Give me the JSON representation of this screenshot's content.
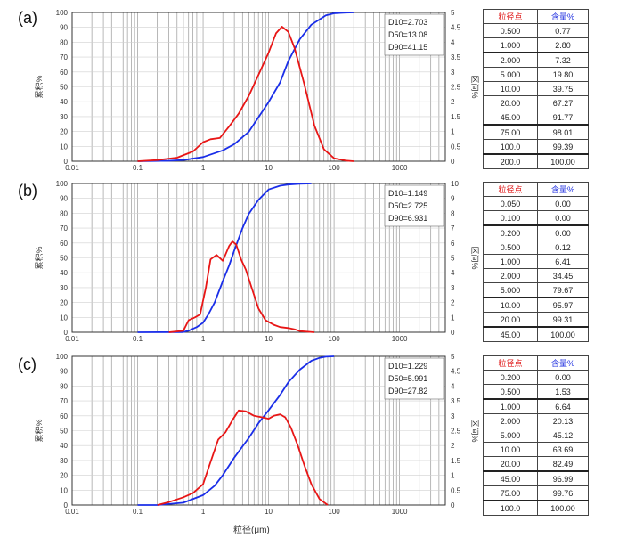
{
  "x_axis_label": "粒径(μm)",
  "chart_data": [
    {
      "type": "line",
      "label": "(a)",
      "ylabel_left": "累积%",
      "ylabel_right": "区间%",
      "ylim_left": [
        0,
        100
      ],
      "ylim_right": [
        0,
        5
      ],
      "y_ticks_left": [
        "0",
        "10",
        "20",
        "30",
        "40",
        "50",
        "60",
        "70",
        "80",
        "90",
        "100"
      ],
      "y_ticks_right": [
        "0",
        "0.5",
        "1",
        "1.5",
        "2",
        "2.5",
        "3",
        "3.5",
        "4",
        "4.5",
        "5"
      ],
      "x_scale": "log",
      "xlim": [
        0.01,
        5000
      ],
      "x_ticks": [
        "0.01",
        "0.1",
        "1",
        "10",
        "100",
        "1000"
      ],
      "d_values": [
        "D10=2.703",
        "D50=13.08",
        "D90=41.15"
      ],
      "colors": {
        "cumulative": "#1a2ee8",
        "interval": "#e81616"
      },
      "cumulative": {
        "x": [
          0.1,
          0.3,
          0.5,
          1,
          2,
          3,
          5,
          10,
          15,
          20,
          30,
          45,
          75,
          100,
          150,
          200
        ],
        "y": [
          0,
          0.3,
          0.77,
          2.8,
          7.3,
          11.5,
          19.8,
          39.75,
          53,
          67.27,
          82,
          91.77,
          98.01,
          99.39,
          99.9,
          100
        ]
      },
      "interval": {
        "x": [
          0.1,
          0.2,
          0.4,
          0.7,
          1,
          1.3,
          1.8,
          2.5,
          3.5,
          5,
          7,
          10,
          13,
          16,
          20,
          25,
          35,
          50,
          70,
          100,
          150,
          200
        ],
        "y": [
          0,
          0.04,
          0.12,
          0.33,
          0.64,
          0.74,
          0.78,
          1.17,
          1.6,
          2.2,
          2.9,
          3.65,
          4.3,
          4.52,
          4.35,
          3.8,
          2.6,
          1.2,
          0.4,
          0.1,
          0.02,
          0
        ]
      },
      "table": {
        "headers": [
          "粒径点",
          "含量%"
        ],
        "rows": [
          [
            "0.500",
            "0.77"
          ],
          [
            "1.000",
            "2.80"
          ],
          [
            "2.000",
            "7.32"
          ],
          [
            "5.000",
            "19.80"
          ],
          [
            "10.00",
            "39.75"
          ],
          [
            "20.00",
            "67.27"
          ],
          [
            "45.00",
            "91.77"
          ],
          [
            "75.00",
            "98.01"
          ],
          [
            "100.0",
            "99.39"
          ],
          [
            "200.0",
            "100.00"
          ]
        ]
      }
    },
    {
      "type": "line",
      "label": "(b)",
      "ylabel_left": "累积%",
      "ylabel_right": "区间%",
      "ylim_left": [
        0,
        100
      ],
      "ylim_right": [
        0,
        10
      ],
      "y_ticks_left": [
        "0",
        "10",
        "20",
        "30",
        "40",
        "50",
        "60",
        "70",
        "80",
        "90",
        "100"
      ],
      "y_ticks_right": [
        "0",
        "1",
        "2",
        "3",
        "4",
        "5",
        "6",
        "7",
        "8",
        "9",
        "10"
      ],
      "x_scale": "log",
      "xlim": [
        0.01,
        5000
      ],
      "x_ticks": [
        "0.01",
        "0.1",
        "1",
        "10",
        "100",
        "1000"
      ],
      "d_values": [
        "D10=1.149",
        "D50=2.725",
        "D90=6.931"
      ],
      "colors": {
        "cumulative": "#1a2ee8",
        "interval": "#e81616"
      },
      "cumulative": {
        "x": [
          0.1,
          0.5,
          0.6,
          0.8,
          1,
          1.2,
          1.5,
          2,
          2.5,
          3,
          4,
          5,
          7,
          10,
          15,
          20,
          30,
          45
        ],
        "y": [
          0,
          0.12,
          1,
          3.5,
          6.41,
          12,
          20,
          34.45,
          45,
          55,
          70,
          79.67,
          89,
          95.97,
          98.5,
          99.31,
          99.8,
          100
        ]
      },
      "interval": {
        "x": [
          0.3,
          0.5,
          0.6,
          0.75,
          0.9,
          1.1,
          1.3,
          1.6,
          2,
          2.5,
          2.8,
          3.2,
          3.8,
          4.5,
          5.5,
          7,
          9,
          12,
          15,
          20,
          25,
          30,
          50
        ],
        "y": [
          0,
          0.1,
          0.8,
          1.0,
          1.2,
          3.0,
          4.9,
          5.2,
          4.8,
          5.8,
          6.1,
          5.9,
          4.9,
          4.2,
          3.0,
          1.6,
          0.8,
          0.5,
          0.35,
          0.28,
          0.2,
          0.08,
          0
        ]
      },
      "table": {
        "headers": [
          "粒径点",
          "含量%"
        ],
        "rows": [
          [
            "0.050",
            "0.00"
          ],
          [
            "0.100",
            "0.00"
          ],
          [
            "0.200",
            "0.00"
          ],
          [
            "0.500",
            "0.12"
          ],
          [
            "1.000",
            "6.41"
          ],
          [
            "2.000",
            "34.45"
          ],
          [
            "5.000",
            "79.67"
          ],
          [
            "10.00",
            "95.97"
          ],
          [
            "20.00",
            "99.31"
          ],
          [
            "45.00",
            "100.00"
          ]
        ]
      }
    },
    {
      "type": "line",
      "label": "(c)",
      "ylabel_left": "累积%",
      "ylabel_right": "区间%",
      "ylim_left": [
        0,
        100
      ],
      "ylim_right": [
        0,
        5
      ],
      "y_ticks_left": [
        "0",
        "10",
        "20",
        "30",
        "40",
        "50",
        "60",
        "70",
        "80",
        "90",
        "100"
      ],
      "y_ticks_right": [
        "0",
        "0.5",
        "1",
        "1.5",
        "2",
        "2.5",
        "3",
        "3.5",
        "4",
        "4.5",
        "5"
      ],
      "x_scale": "log",
      "xlim": [
        0.01,
        5000
      ],
      "x_ticks": [
        "0.01",
        "0.1",
        "1",
        "10",
        "100",
        "1000"
      ],
      "d_values": [
        "D10=1.229",
        "D50=5.991",
        "D90=27.82"
      ],
      "colors": {
        "cumulative": "#1a2ee8",
        "interval": "#e81616"
      },
      "cumulative": {
        "x": [
          0.1,
          0.2,
          0.5,
          1,
          1.5,
          2,
          3,
          5,
          7,
          10,
          15,
          20,
          30,
          45,
          60,
          75,
          100
        ],
        "y": [
          0,
          0,
          1.53,
          6.64,
          13,
          20.13,
          32,
          45.12,
          55,
          63.69,
          74,
          82.49,
          91,
          96.99,
          99,
          99.76,
          100
        ]
      },
      "interval": {
        "x": [
          0.2,
          0.3,
          0.5,
          0.7,
          1,
          1.3,
          1.7,
          2.2,
          2.8,
          3.5,
          4.5,
          6,
          8,
          10,
          12,
          15,
          18,
          22,
          28,
          35,
          45,
          60,
          80
        ],
        "y": [
          0,
          0.1,
          0.26,
          0.4,
          0.7,
          1.45,
          2.2,
          2.45,
          2.85,
          3.18,
          3.15,
          3.0,
          2.95,
          2.9,
          3.0,
          3.05,
          2.95,
          2.6,
          2.0,
          1.35,
          0.7,
          0.2,
          0
        ]
      },
      "table": {
        "headers": [
          "粒径点",
          "含量%"
        ],
        "rows": [
          [
            "0.200",
            "0.00"
          ],
          [
            "0.500",
            "1.53"
          ],
          [
            "1.000",
            "6.64"
          ],
          [
            "2.000",
            "20.13"
          ],
          [
            "5.000",
            "45.12"
          ],
          [
            "10.00",
            "63.69"
          ],
          [
            "20.00",
            "82.49"
          ],
          [
            "45.00",
            "96.99"
          ],
          [
            "75.00",
            "99.76"
          ],
          [
            "100.0",
            "100.00"
          ]
        ]
      }
    }
  ]
}
